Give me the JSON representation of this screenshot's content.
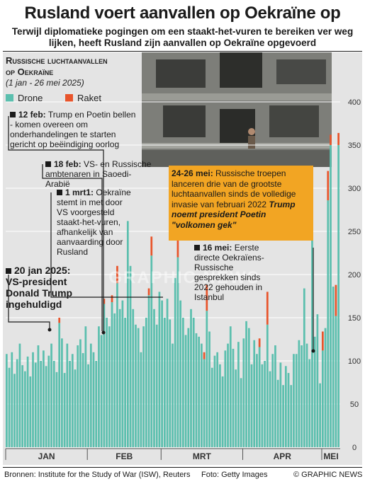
{
  "header": {
    "title": "Rusland voert aanvallen op Oekraïne op",
    "subtitle": "Terwijl diplomatieke pogingen om een staakt-het-vuren te bereiken ver weg lijken, heeft Rusland zijn aanvallen op Oekraïne opgevoerd"
  },
  "chart_title_line1": "Russische luchtaanvallen",
  "chart_title_line2": "op Oekraïne",
  "chart_range": "(1 jan - 26 mei 2025)",
  "legend": {
    "drone": "Drone",
    "raket": "Raket"
  },
  "colors": {
    "drone": "#5bbfae",
    "raket": "#e8542b",
    "highlight": "#f2a523",
    "panel": "#e4e4e4"
  },
  "annotations": {
    "a1": {
      "date": "12 feb:",
      "text": "Trump en Poetin bellen - komen overeen om onderhandelingen te starten gericht op beëindiging oorlog"
    },
    "a2": {
      "date": "18 feb:",
      "text": "VS- en Russische ambtenaren in Saoedi-Arabië"
    },
    "a3": {
      "date": "1 mrt1:",
      "text": "Oekraïne stemt in met door VS voorgesteld staakt-het-vuren, afhankelijk van aanvaarding door Rusland"
    },
    "a4": {
      "text": "20 jan 2025: VS-president Donald Trump ingehuldigd"
    },
    "a5": {
      "date": "24-26 mei:",
      "text": "Russische troepen lanceren drie van de grootste luchtaanvallen sinds de volledige invasie van februari 2022",
      "bold": "Trump noemt president Poetin \"volkomen gek\""
    },
    "a6": {
      "date": "16 mei:",
      "text": "Eerste directe Oekraïens-Russische gesprekken sinds 2022 gehouden in Istanbul"
    }
  },
  "watermark": "GRAPHIC NEWS",
  "footer": {
    "source": "Bronnen: Institute for the Study of War (ISW), Reuters",
    "photo": "Foto: Getty Images",
    "credit": "© GRAPHIC NEWS"
  },
  "chart_data": {
    "type": "bar",
    "stacked": true,
    "x_start": "2025-01-01",
    "x_end": "2025-05-26",
    "ylim": [
      0,
      400
    ],
    "yticks": [
      0,
      50,
      100,
      150,
      200,
      250,
      300,
      350,
      400
    ],
    "month_labels": [
      "JAN",
      "FEB",
      "MRT",
      "APR",
      "MEI"
    ],
    "series": [
      {
        "name": "Drone",
        "values": [
          108,
          92,
          110,
          85,
          102,
          120,
          95,
          88,
          105,
          82,
          110,
          98,
          118,
          100,
          112,
          94,
          106,
          120,
          100,
          87,
          144,
          126,
          86,
          120,
          100,
          108,
          90,
          118,
          125,
          109,
          140,
          96,
          120,
          110,
          100,
          140,
          130,
          166,
          150,
          140,
          168,
          155,
          190,
          160,
          170,
          150,
          262,
          210,
          160,
          142,
          138,
          110,
          140,
          150,
          176,
          222,
          160,
          142,
          180,
          170,
          150,
          172,
          148,
          120,
          196,
          220,
          170,
          150,
          130,
          138,
          160,
          150,
          132,
          128,
          120,
          102,
          158,
          134,
          92,
          106,
          110,
          96,
          82,
          112,
          120,
          140,
          114,
          90,
          122,
          80,
          126,
          146,
          138,
          96,
          124,
          108,
          116,
          96,
          100,
          142,
          88,
          108,
          118,
          78,
          98,
          72,
          94,
          86,
          72,
          108,
          108,
          124,
          118,
          184,
          120,
          102,
          268,
          128,
          154,
          74,
          112,
          138,
          286,
          350,
          186,
          152,
          350
        ]
      },
      {
        "name": "Raket",
        "values": [
          0,
          0,
          0,
          0,
          0,
          0,
          0,
          0,
          0,
          0,
          0,
          0,
          0,
          0,
          0,
          0,
          0,
          0,
          0,
          0,
          6,
          0,
          0,
          0,
          0,
          0,
          0,
          0,
          0,
          0,
          0,
          0,
          0,
          0,
          0,
          0,
          0,
          6,
          0,
          0,
          8,
          0,
          20,
          0,
          0,
          0,
          0,
          0,
          0,
          0,
          0,
          0,
          0,
          0,
          8,
          22,
          0,
          0,
          0,
          0,
          0,
          0,
          0,
          0,
          0,
          34,
          0,
          0,
          0,
          0,
          0,
          0,
          0,
          0,
          0,
          8,
          30,
          0,
          0,
          0,
          0,
          0,
          0,
          0,
          0,
          0,
          0,
          0,
          0,
          0,
          0,
          0,
          0,
          0,
          0,
          0,
          10,
          0,
          0,
          38,
          0,
          0,
          0,
          0,
          0,
          0,
          0,
          0,
          0,
          0,
          0,
          0,
          0,
          0,
          0,
          0,
          0,
          0,
          0,
          0,
          22,
          0,
          34,
          12,
          0,
          36,
          14
        ]
      }
    ]
  }
}
